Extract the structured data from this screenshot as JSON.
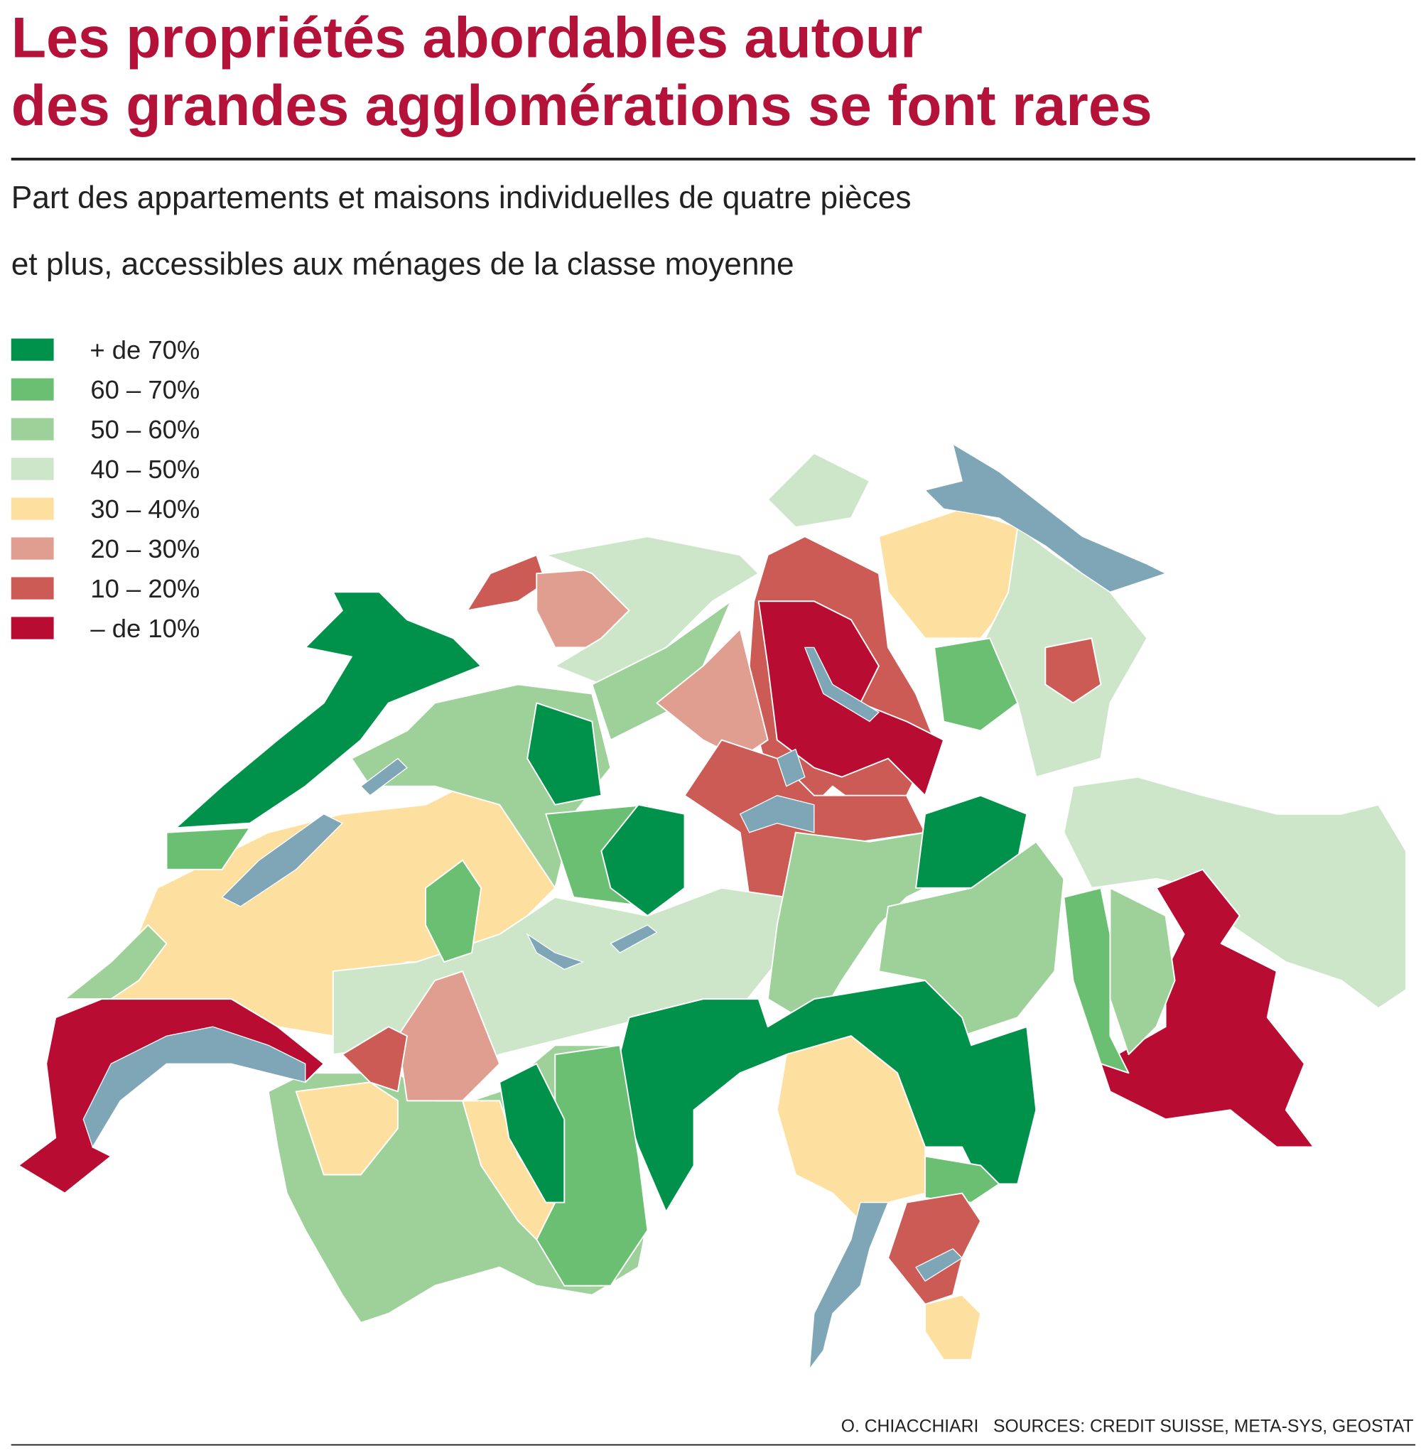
{
  "title": [
    "Les propriétés abordables autour",
    "des grandes agglomérations se font rares"
  ],
  "subtitle": [
    "Part des appartements et maisons individuelles de quatre pièces",
    "et plus, accessibles aux ménages de la classe moyenne"
  ],
  "legend": [
    {
      "label": "+ de 70%",
      "color": "#00924a"
    },
    {
      "label": "60 – 70%",
      "color": "#6abf72"
    },
    {
      "label": "50 – 60%",
      "color": "#9ed19a"
    },
    {
      "label": "40 – 50%",
      "color": "#cde6c9"
    },
    {
      "label": "30 – 40%",
      "color": "#fde09f"
    },
    {
      "label": "20 – 30%",
      "color": "#e09e91"
    },
    {
      "label": "10 – 20%",
      "color": "#cc5a55"
    },
    {
      "label": "– de 10%",
      "color": "#b80c32"
    }
  ],
  "credit": "O. CHIACCHIARI   SOURCES: CREDIT SUISSE, META-SYS, GEOSTAT"
}
